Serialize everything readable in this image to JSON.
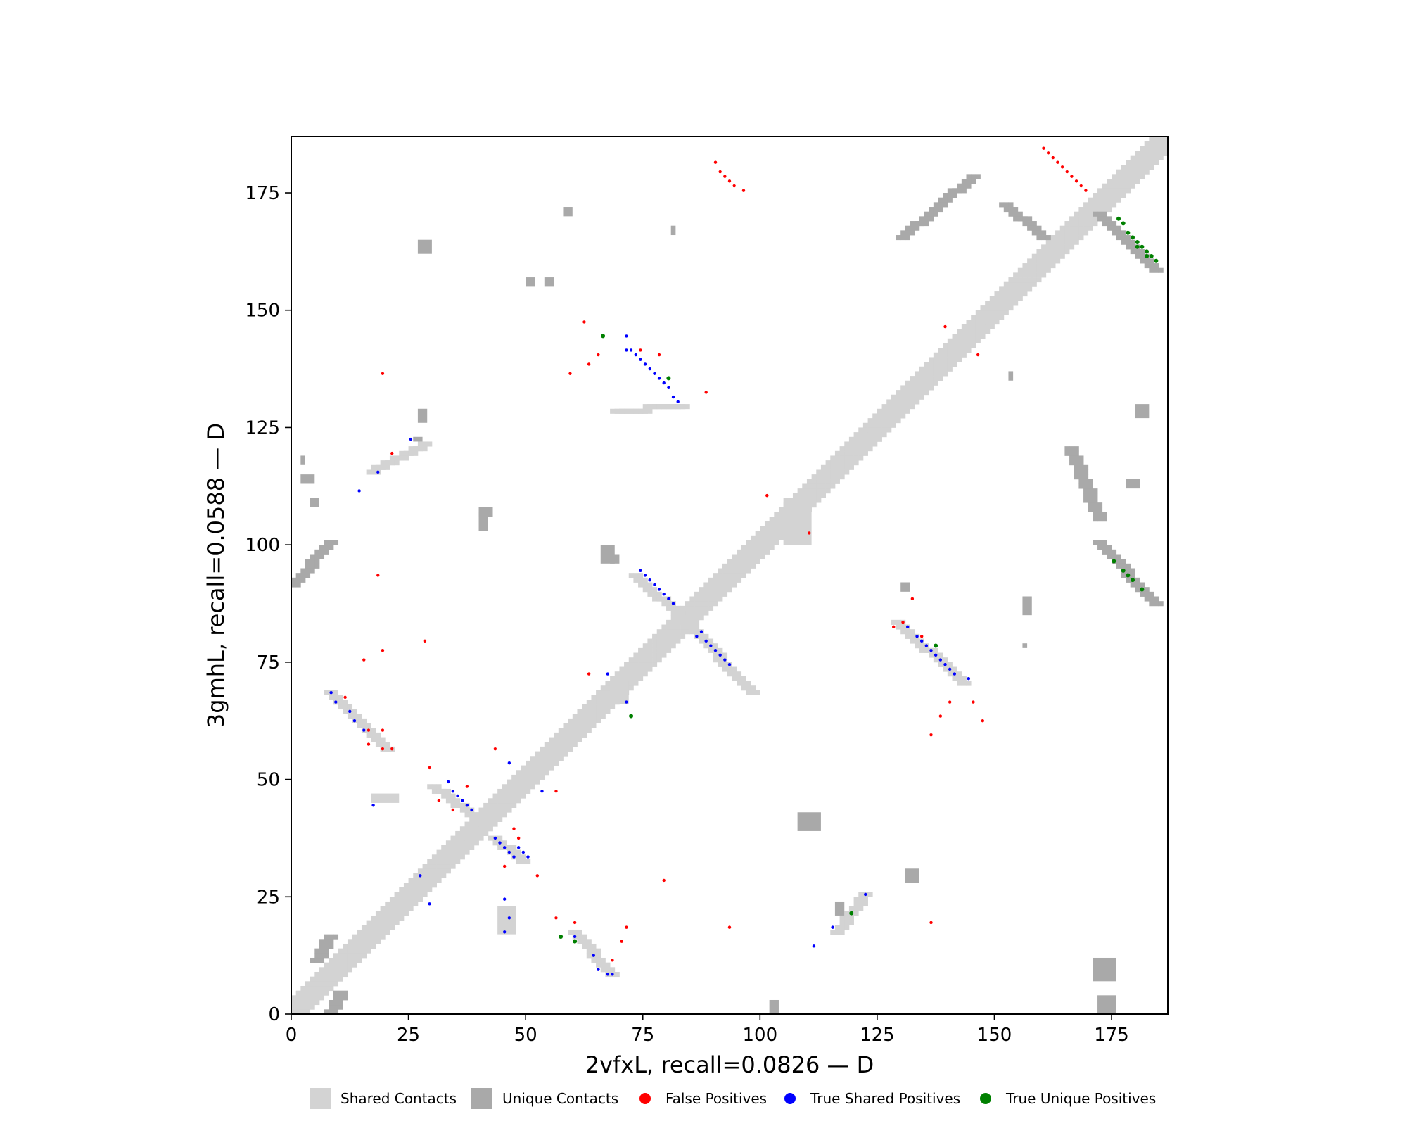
{
  "chart_data": {
    "type": "scatter",
    "subtype": "contact-map",
    "xlabel": "2vfxL, recall=0.0826 — D",
    "ylabel": "3gmhL, recall=0.0588 — D",
    "xlim": [
      0,
      187
    ],
    "ylim": [
      0,
      187
    ],
    "x_ticks": [
      0,
      25,
      50,
      75,
      100,
      125,
      150,
      175
    ],
    "y_ticks": [
      0,
      25,
      50,
      75,
      100,
      125,
      150,
      175
    ],
    "grid": false,
    "legend_position": "bottom",
    "legend": [
      {
        "label": "Shared Contacts",
        "kind": "square",
        "color": "#d3d3d3"
      },
      {
        "label": "Unique Contacts",
        "kind": "square",
        "color": "#a9a9a9"
      },
      {
        "label": "False Positives",
        "kind": "dot",
        "color": "#ff0000"
      },
      {
        "label": "True Shared Positives",
        "kind": "dot",
        "color": "#0000ff"
      },
      {
        "label": "True Unique Positives",
        "kind": "dot",
        "color": "#008000"
      }
    ],
    "colors": {
      "shared": "#d3d3d3",
      "unique": "#a9a9a9",
      "false_positive": "#ff0000",
      "true_shared": "#0000ff",
      "true_unique": "#008000"
    },
    "diagonal_band": {
      "from": 0,
      "to": 186,
      "half_width": 3
    },
    "shared_segments": [
      [
        [
          69,
          128
        ],
        [
          83,
          129
        ]
      ],
      [
        [
          73,
          93
        ],
        [
          84,
          83
        ]
      ],
      [
        [
          84,
          83
        ],
        [
          98,
          68
        ]
      ],
      [
        [
          60,
          17
        ],
        [
          68,
          8
        ]
      ],
      [
        [
          30,
          48
        ],
        [
          38,
          42
        ]
      ],
      [
        [
          43,
          37
        ],
        [
          49,
          32
        ]
      ],
      [
        [
          129,
          83
        ],
        [
          143,
          70
        ]
      ],
      [
        [
          8,
          68
        ],
        [
          20,
          56
        ]
      ],
      [
        [
          116,
          17
        ],
        [
          122,
          25
        ]
      ],
      [
        [
          17,
          115
        ],
        [
          28,
          121
        ]
      ]
    ],
    "shared_boxes": [
      [
        [
          17,
          45
        ],
        [
          23,
          47
        ]
      ],
      [
        [
          44,
          17
        ],
        [
          48,
          23
        ]
      ],
      [
        [
          68,
          71
        ],
        [
          72,
          66
        ]
      ],
      [
        [
          105,
          100
        ],
        [
          111,
          110
        ]
      ]
    ],
    "unique_segments": [
      [
        [
          0,
          91
        ],
        [
          8,
          100
        ]
      ],
      [
        [
          130,
          165
        ],
        [
          145,
          178
        ]
      ],
      [
        [
          152,
          172
        ],
        [
          160,
          165
        ]
      ],
      [
        [
          172,
          170
        ],
        [
          184,
          158
        ]
      ],
      [
        [
          172,
          100
        ],
        [
          184,
          87
        ]
      ],
      [
        [
          166,
          120
        ],
        [
          172,
          105
        ]
      ],
      [
        [
          8,
          0
        ],
        [
          10,
          4
        ]
      ],
      [
        [
          5,
          11
        ],
        [
          8,
          16
        ]
      ]
    ],
    "unique_boxes": [
      [
        [
          2,
          113
        ],
        [
          5,
          115
        ]
      ],
      [
        [
          4,
          108
        ],
        [
          6,
          110
        ]
      ],
      [
        [
          2,
          117
        ],
        [
          3,
          119
        ]
      ],
      [
        [
          27,
          126
        ],
        [
          29,
          129
        ]
      ],
      [
        [
          26,
          122
        ],
        [
          28,
          123
        ]
      ],
      [
        [
          27,
          162
        ],
        [
          30,
          165
        ]
      ],
      [
        [
          58,
          170
        ],
        [
          60,
          172
        ]
      ],
      [
        [
          81,
          166
        ],
        [
          82,
          168
        ]
      ],
      [
        [
          50,
          155
        ],
        [
          52,
          157
        ]
      ],
      [
        [
          54,
          155
        ],
        [
          56,
          157
        ]
      ],
      [
        [
          40,
          103
        ],
        [
          42,
          107
        ]
      ],
      [
        [
          40,
          106
        ],
        [
          43,
          108
        ]
      ],
      [
        [
          66,
          96
        ],
        [
          69,
          100
        ]
      ],
      [
        [
          68,
          96
        ],
        [
          70,
          98
        ]
      ],
      [
        [
          102,
          0
        ],
        [
          104,
          3
        ]
      ],
      [
        [
          108,
          39
        ],
        [
          113,
          43
        ]
      ],
      [
        [
          131,
          28
        ],
        [
          134,
          31
        ]
      ],
      [
        [
          156,
          78
        ],
        [
          157,
          79
        ]
      ],
      [
        [
          156,
          85
        ],
        [
          158,
          89
        ]
      ],
      [
        [
          153,
          135
        ],
        [
          154,
          137
        ]
      ],
      [
        [
          180,
          127
        ],
        [
          183,
          130
        ]
      ],
      [
        [
          178,
          112
        ],
        [
          181,
          114
        ]
      ],
      [
        [
          172,
          0
        ],
        [
          176,
          4
        ]
      ],
      [
        [
          171,
          7
        ],
        [
          176,
          12
        ]
      ],
      [
        [
          130,
          90
        ],
        [
          132,
          92
        ]
      ],
      [
        [
          116,
          21
        ],
        [
          118,
          24
        ]
      ]
    ],
    "false_positives": [
      [
        90,
        181
      ],
      [
        91,
        179
      ],
      [
        92,
        178
      ],
      [
        93,
        177
      ],
      [
        94,
        176
      ],
      [
        96,
        175
      ],
      [
        160,
        184
      ],
      [
        161,
        183
      ],
      [
        162,
        182
      ],
      [
        163,
        181
      ],
      [
        164,
        180
      ],
      [
        165,
        179
      ],
      [
        166,
        178
      ],
      [
        167,
        177
      ],
      [
        168,
        176
      ],
      [
        169,
        175
      ],
      [
        62,
        147
      ],
      [
        59,
        136
      ],
      [
        63,
        138
      ],
      [
        65,
        140
      ],
      [
        74,
        141
      ],
      [
        88,
        132
      ],
      [
        78,
        140
      ],
      [
        19,
        136
      ],
      [
        21,
        119
      ],
      [
        101,
        110
      ],
      [
        110,
        102
      ],
      [
        18,
        93
      ],
      [
        28,
        79
      ],
      [
        15,
        75
      ],
      [
        19,
        77
      ],
      [
        11,
        67
      ],
      [
        16,
        60
      ],
      [
        19,
        60
      ],
      [
        16,
        57
      ],
      [
        19,
        56
      ],
      [
        21,
        56
      ],
      [
        29,
        52
      ],
      [
        31,
        45
      ],
      [
        37,
        48
      ],
      [
        34,
        43
      ],
      [
        43,
        56
      ],
      [
        56,
        47
      ],
      [
        47,
        39
      ],
      [
        48,
        37
      ],
      [
        45,
        31
      ],
      [
        52,
        29
      ],
      [
        63,
        72
      ],
      [
        79,
        28
      ],
      [
        56,
        20
      ],
      [
        60,
        19
      ],
      [
        70,
        15
      ],
      [
        71,
        18
      ],
      [
        68,
        11
      ],
      [
        93,
        18
      ],
      [
        132,
        88
      ],
      [
        136,
        59
      ],
      [
        138,
        63
      ],
      [
        140,
        66
      ],
      [
        145,
        66
      ],
      [
        147,
        62
      ],
      [
        136,
        19
      ],
      [
        139,
        146
      ],
      [
        146,
        140
      ],
      [
        134,
        80
      ],
      [
        130,
        83
      ],
      [
        128,
        82
      ]
    ],
    "true_shared": [
      [
        71,
        144
      ],
      [
        71,
        141
      ],
      [
        72,
        141
      ],
      [
        73,
        140
      ],
      [
        74,
        139
      ],
      [
        75,
        138
      ],
      [
        76,
        137
      ],
      [
        77,
        136
      ],
      [
        78,
        135
      ],
      [
        79,
        134
      ],
      [
        80,
        133
      ],
      [
        81,
        131
      ],
      [
        82,
        130
      ],
      [
        74,
        94
      ],
      [
        75,
        93
      ],
      [
        76,
        92
      ],
      [
        77,
        91
      ],
      [
        78,
        90
      ],
      [
        79,
        89
      ],
      [
        80,
        88
      ],
      [
        81,
        87
      ],
      [
        86,
        80
      ],
      [
        87,
        81
      ],
      [
        88,
        79
      ],
      [
        89,
        78
      ],
      [
        90,
        77
      ],
      [
        91,
        76
      ],
      [
        92,
        75
      ],
      [
        93,
        74
      ],
      [
        131,
        82
      ],
      [
        133,
        80
      ],
      [
        134,
        79
      ],
      [
        135,
        78
      ],
      [
        136,
        77
      ],
      [
        137,
        76
      ],
      [
        138,
        75
      ],
      [
        139,
        74
      ],
      [
        140,
        73
      ],
      [
        141,
        72
      ],
      [
        144,
        71
      ],
      [
        8,
        68
      ],
      [
        9,
        66
      ],
      [
        12,
        64
      ],
      [
        13,
        62
      ],
      [
        15,
        60
      ],
      [
        17,
        44
      ],
      [
        33,
        49
      ],
      [
        34,
        47
      ],
      [
        35,
        46
      ],
      [
        36,
        45
      ],
      [
        37,
        44
      ],
      [
        38,
        43
      ],
      [
        43,
        37
      ],
      [
        44,
        36
      ],
      [
        45,
        35
      ],
      [
        46,
        34
      ],
      [
        47,
        33
      ],
      [
        48,
        35
      ],
      [
        49,
        34
      ],
      [
        50,
        33
      ],
      [
        14,
        111
      ],
      [
        18,
        115
      ],
      [
        25,
        122
      ],
      [
        27,
        29
      ],
      [
        29,
        23
      ],
      [
        46,
        53
      ],
      [
        53,
        47
      ],
      [
        67,
        72
      ],
      [
        71,
        66
      ],
      [
        72,
        63
      ],
      [
        45,
        24
      ],
      [
        45,
        17
      ],
      [
        46,
        20
      ],
      [
        60,
        16
      ],
      [
        64,
        12
      ],
      [
        65,
        9
      ],
      [
        67,
        8
      ],
      [
        68,
        8
      ],
      [
        111,
        14
      ],
      [
        115,
        18
      ],
      [
        122,
        25
      ],
      [
        57,
        16
      ]
    ],
    "true_unique": [
      [
        66,
        144
      ],
      [
        80,
        135
      ],
      [
        137,
        78
      ],
      [
        72,
        63
      ],
      [
        60,
        15
      ],
      [
        57,
        16
      ],
      [
        119,
        21
      ],
      [
        176,
        169
      ],
      [
        177,
        168
      ],
      [
        178,
        166
      ],
      [
        179,
        165
      ],
      [
        180,
        164
      ],
      [
        181,
        163
      ],
      [
        182,
        162
      ],
      [
        183,
        161
      ],
      [
        184,
        160
      ],
      [
        180,
        163
      ],
      [
        182,
        161
      ],
      [
        175,
        96
      ],
      [
        177,
        94
      ],
      [
        178,
        93
      ],
      [
        179,
        92
      ],
      [
        181,
        90
      ]
    ]
  }
}
